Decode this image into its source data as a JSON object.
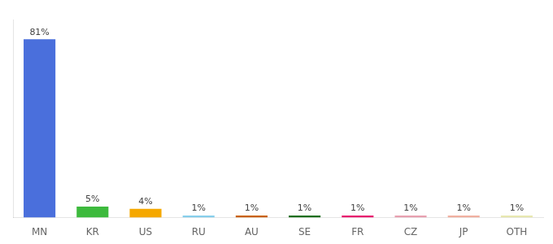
{
  "chart_data": {
    "type": "bar",
    "categories": [
      "MN",
      "KR",
      "US",
      "RU",
      "AU",
      "SE",
      "FR",
      "CZ",
      "JP",
      "OTH"
    ],
    "values": [
      81,
      5,
      4,
      1,
      1,
      1,
      1,
      1,
      1,
      1
    ],
    "value_labels": [
      "81%",
      "5%",
      "4%",
      "1%",
      "1%",
      "1%",
      "1%",
      "1%",
      "1%",
      "1%"
    ],
    "colors": [
      "#4a6fdc",
      "#3dba3d",
      "#f5a800",
      "#87ceeb",
      "#c86000",
      "#1a6e1a",
      "#e8186e",
      "#e8a0b0",
      "#f0b0a0",
      "#e8e8b0"
    ],
    "ylim": [
      0,
      90
    ],
    "yticks": [],
    "grid": false,
    "data_labels": true,
    "tick_labels": "x"
  }
}
